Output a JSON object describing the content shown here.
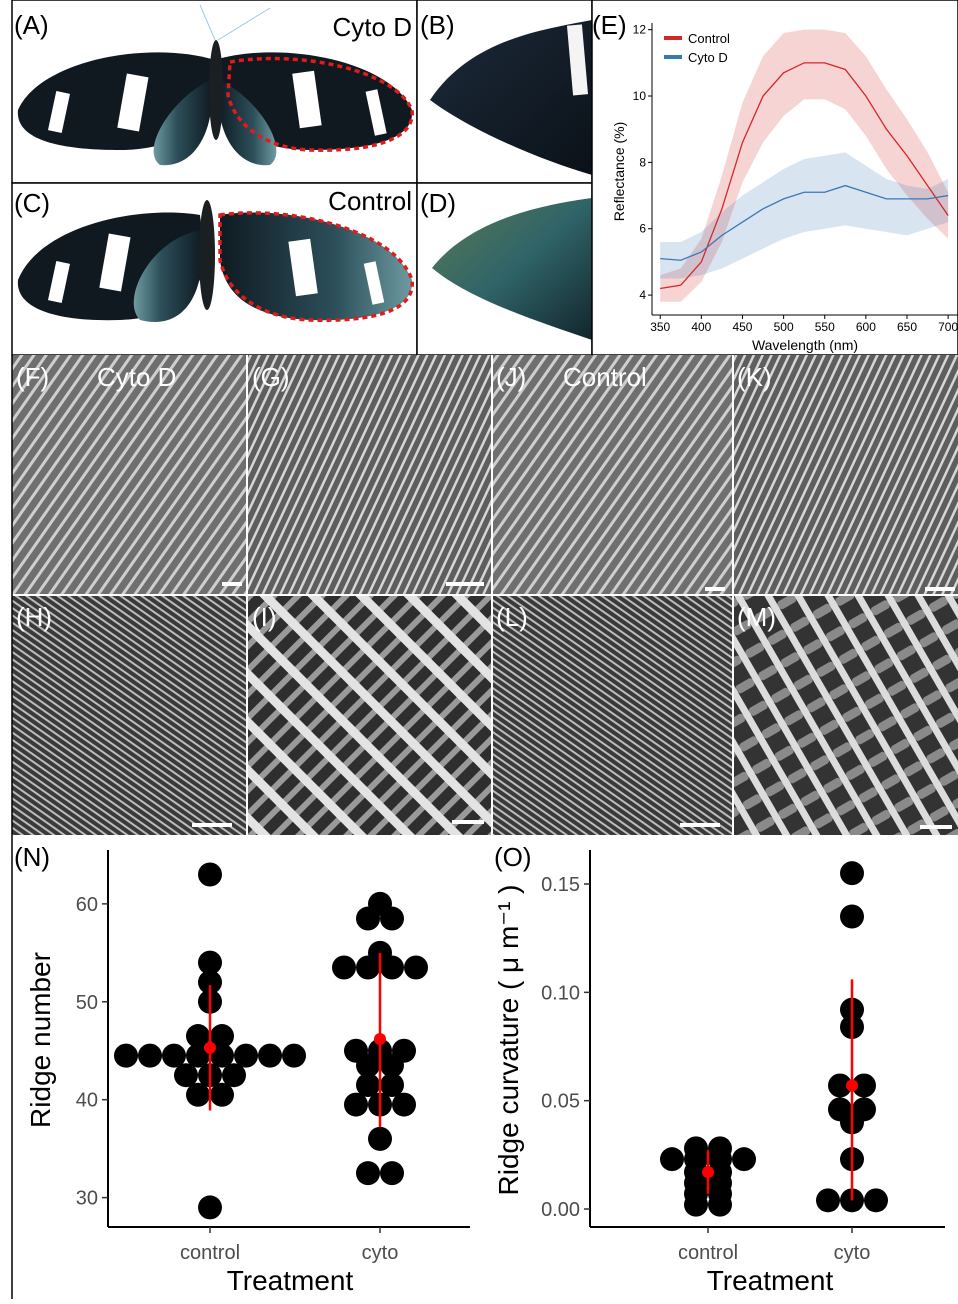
{
  "panels": {
    "labels": [
      "(A)",
      "(B)",
      "(C)",
      "(D)",
      "(E)",
      "(F)",
      "(G)",
      "(H)",
      "(I)",
      "(J)",
      "(K)",
      "(L)",
      "(M)",
      "(N)",
      "(O)"
    ],
    "captions": [
      "Cyto D",
      "Control",
      "Cyto D",
      "Control"
    ]
  },
  "chart_data": [
    {
      "type": "line",
      "xlabel": "Wavelength (nm)",
      "ylabel": "Reflectance (%)",
      "x": [
        350,
        375,
        400,
        425,
        450,
        475,
        500,
        525,
        550,
        575,
        600,
        625,
        650,
        675,
        700
      ],
      "xlim": [
        340,
        712
      ],
      "ylim": [
        3.4,
        12.05
      ],
      "xticks": [
        350,
        400,
        450,
        500,
        550,
        600,
        650,
        700
      ],
      "yticks": [
        4,
        6,
        8,
        10,
        12
      ],
      "legend": "upper left",
      "series": [
        {
          "name": "Control",
          "color": "#d62728",
          "values": [
            4.2,
            4.3,
            5.0,
            6.6,
            8.6,
            10.0,
            10.7,
            11.0,
            11.0,
            10.8,
            10.0,
            9.0,
            8.2,
            7.3,
            6.4
          ],
          "lower": [
            3.8,
            3.8,
            4.4,
            5.6,
            7.4,
            8.6,
            9.4,
            9.9,
            9.9,
            9.6,
            8.8,
            7.8,
            7.0,
            6.3,
            5.7
          ],
          "upper": [
            4.6,
            4.8,
            5.7,
            7.6,
            9.8,
            11.2,
            11.9,
            12.0,
            12.0,
            11.9,
            11.2,
            10.2,
            9.3,
            8.3,
            7.1
          ]
        },
        {
          "name": "Cyto D",
          "color": "#3a78b5",
          "values": [
            5.1,
            5.05,
            5.3,
            5.8,
            6.2,
            6.6,
            6.9,
            7.1,
            7.1,
            7.3,
            7.1,
            6.9,
            6.9,
            6.9,
            7.0
          ],
          "lower": [
            4.5,
            4.5,
            4.6,
            4.8,
            5.1,
            5.4,
            5.7,
            5.9,
            6.0,
            6.1,
            6.0,
            5.9,
            5.8,
            6.0,
            6.2
          ],
          "upper": [
            5.6,
            5.6,
            5.9,
            6.5,
            7.0,
            7.4,
            7.8,
            8.1,
            8.2,
            8.3,
            7.9,
            7.5,
            7.3,
            7.2,
            7.5
          ]
        }
      ]
    },
    {
      "type": "dotplot",
      "xlabel": "Treatment",
      "ylabel": "Ridge number",
      "categories": [
        "control",
        "cyto"
      ],
      "ylim": [
        27,
        65.5
      ],
      "yticks": [
        30,
        40,
        50,
        60
      ],
      "point_color": "#000000",
      "summary_color": "#ff0000",
      "groups": [
        {
          "values": [
            63,
            54,
            52,
            50,
            46.5,
            46.5,
            44.5,
            44.5,
            44.5,
            44.5,
            44.5,
            44.5,
            44.5,
            44.5,
            42.5,
            42.5,
            42.5,
            40.5,
            40.5,
            29
          ],
          "mean": 45.3,
          "lower": 38.9,
          "upper": 51.7
        },
        {
          "values": [
            60,
            58.5,
            58.5,
            55,
            53.5,
            53.5,
            53.5,
            53.5,
            45,
            45,
            45,
            43.5,
            43.5,
            41.5,
            41.5,
            39.5,
            39.5,
            39.5,
            36,
            32.5,
            32.5
          ],
          "mean": 46.2,
          "lower": 37.2,
          "upper": 55
        }
      ]
    },
    {
      "type": "dotplot",
      "xlabel": "Treatment",
      "ylabel": "Ridge curvature ( μ m⁻¹ )",
      "categories": [
        "control",
        "cyto"
      ],
      "ylim": [
        -0.0083,
        0.1657
      ],
      "yticks": [
        {
          "value": 0,
          "label": "0.00"
        },
        {
          "value": 0.05,
          "label": "0.05"
        },
        {
          "value": 0.1,
          "label": "0.10"
        },
        {
          "value": 0.15,
          "label": "0.15"
        }
      ],
      "point_color": "#000000",
      "summary_color": "#ff0000",
      "groups": [
        {
          "values": [
            0.028,
            0.028,
            0.023,
            0.023,
            0.023,
            0.023,
            0.017,
            0.017,
            0.012,
            0.012,
            0.007,
            0.007,
            0.002,
            0.002
          ],
          "mean": 0.017,
          "lower": 0.007,
          "upper": 0.027
        },
        {
          "values": [
            0.155,
            0.135,
            0.092,
            0.084,
            0.057,
            0.057,
            0.046,
            0.046,
            0.04,
            0.023,
            0.004,
            0.004,
            0.004
          ],
          "mean": 0.057,
          "lower": 0.004,
          "upper": 0.106
        }
      ]
    }
  ]
}
